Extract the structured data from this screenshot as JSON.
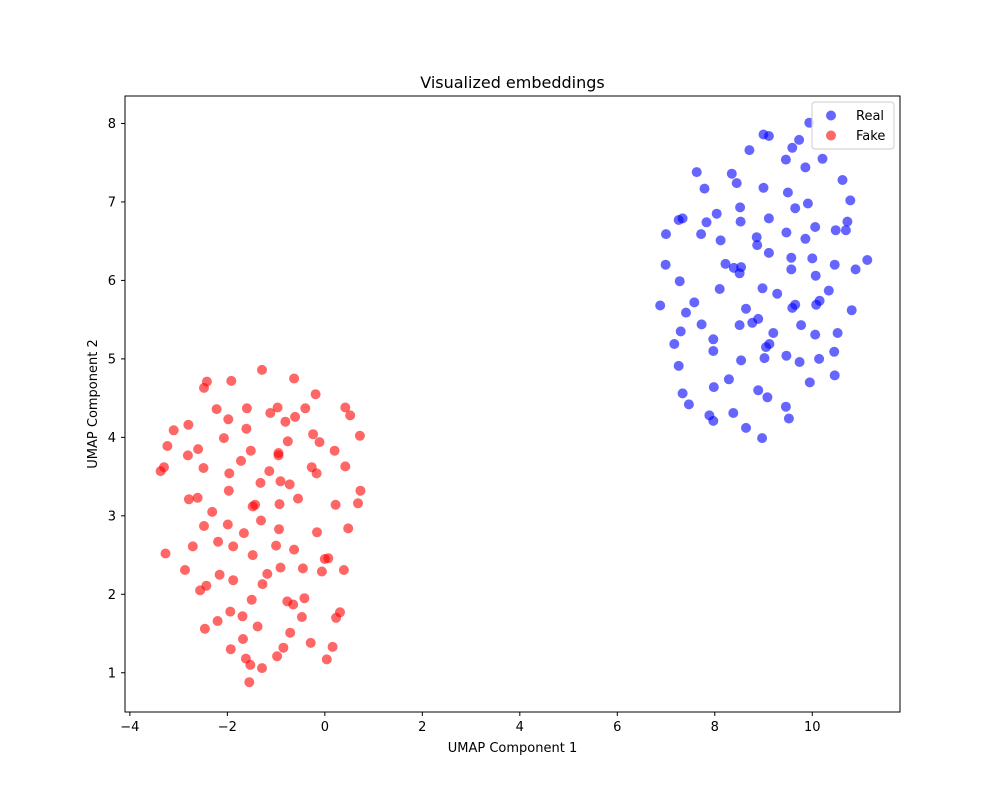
{
  "chart_data": {
    "type": "scatter",
    "title": "Visualized embeddings",
    "xlabel": "UMAP Component 1",
    "ylabel": "UMAP Component 2",
    "xlim": [
      -4.1,
      11.8
    ],
    "ylim": [
      0.5,
      8.35
    ],
    "xticks": [
      -4,
      -2,
      0,
      2,
      4,
      6,
      8,
      10
    ],
    "xtick_labels": [
      "−4",
      "−2",
      "0",
      "2",
      "4",
      "6",
      "8",
      "10"
    ],
    "yticks": [
      1,
      2,
      3,
      4,
      5,
      6,
      7,
      8
    ],
    "ytick_labels": [
      "1",
      "2",
      "3",
      "4",
      "5",
      "6",
      "7",
      "8"
    ],
    "grid": false,
    "legend_position": "top-right",
    "series": [
      {
        "name": "Real",
        "color": "#0000ff",
        "points": [
          [
            9.94,
            8.01
          ],
          [
            9.0,
            7.86
          ],
          [
            9.11,
            7.84
          ],
          [
            9.73,
            7.79
          ],
          [
            9.59,
            7.69
          ],
          [
            8.71,
            7.66
          ],
          [
            10.21,
            7.55
          ],
          [
            9.46,
            7.54
          ],
          [
            9.86,
            7.44
          ],
          [
            7.63,
            7.38
          ],
          [
            8.35,
            7.36
          ],
          [
            10.62,
            7.28
          ],
          [
            8.45,
            7.24
          ],
          [
            7.79,
            7.17
          ],
          [
            9.0,
            7.18
          ],
          [
            9.5,
            7.12
          ],
          [
            10.78,
            7.02
          ],
          [
            9.91,
            6.98
          ],
          [
            8.52,
            6.93
          ],
          [
            9.65,
            6.92
          ],
          [
            8.04,
            6.85
          ],
          [
            7.34,
            6.79
          ],
          [
            7.26,
            6.77
          ],
          [
            7.83,
            6.74
          ],
          [
            8.53,
            6.75
          ],
          [
            9.11,
            6.79
          ],
          [
            10.72,
            6.75
          ],
          [
            10.06,
            6.68
          ],
          [
            10.48,
            6.64
          ],
          [
            10.69,
            6.64
          ],
          [
            7.0,
            6.59
          ],
          [
            7.72,
            6.59
          ],
          [
            9.47,
            6.61
          ],
          [
            8.12,
            6.51
          ],
          [
            8.86,
            6.55
          ],
          [
            9.86,
            6.53
          ],
          [
            8.87,
            6.45
          ],
          [
            9.11,
            6.35
          ],
          [
            9.57,
            6.29
          ],
          [
            10.0,
            6.28
          ],
          [
            11.13,
            6.26
          ],
          [
            6.99,
            6.2
          ],
          [
            8.22,
            6.21
          ],
          [
            8.39,
            6.16
          ],
          [
            8.54,
            6.17
          ],
          [
            8.51,
            6.09
          ],
          [
            9.57,
            6.14
          ],
          [
            10.46,
            6.2
          ],
          [
            10.89,
            6.14
          ],
          [
            10.07,
            6.06
          ],
          [
            7.28,
            5.99
          ],
          [
            8.1,
            5.89
          ],
          [
            8.98,
            5.9
          ],
          [
            9.28,
            5.83
          ],
          [
            10.34,
            5.87
          ],
          [
            6.88,
            5.68
          ],
          [
            7.58,
            5.72
          ],
          [
            10.15,
            5.74
          ],
          [
            9.59,
            5.65
          ],
          [
            9.65,
            5.69
          ],
          [
            10.08,
            5.69
          ],
          [
            10.81,
            5.62
          ],
          [
            7.41,
            5.59
          ],
          [
            8.64,
            5.64
          ],
          [
            8.89,
            5.51
          ],
          [
            7.73,
            5.44
          ],
          [
            8.51,
            5.43
          ],
          [
            8.77,
            5.46
          ],
          [
            9.77,
            5.43
          ],
          [
            7.3,
            5.35
          ],
          [
            9.2,
            5.33
          ],
          [
            10.06,
            5.31
          ],
          [
            10.52,
            5.33
          ],
          [
            7.97,
            5.25
          ],
          [
            7.17,
            5.19
          ],
          [
            9.05,
            5.15
          ],
          [
            9.12,
            5.19
          ],
          [
            7.97,
            5.1
          ],
          [
            10.45,
            5.09
          ],
          [
            9.47,
            5.04
          ],
          [
            9.02,
            5.01
          ],
          [
            10.14,
            5.0
          ],
          [
            8.54,
            4.98
          ],
          [
            9.74,
            4.96
          ],
          [
            7.26,
            4.91
          ],
          [
            10.46,
            4.79
          ],
          [
            8.29,
            4.74
          ],
          [
            9.95,
            4.7
          ],
          [
            7.98,
            4.64
          ],
          [
            8.89,
            4.6
          ],
          [
            7.34,
            4.56
          ],
          [
            9.08,
            4.51
          ],
          [
            7.47,
            4.42
          ],
          [
            9.46,
            4.39
          ],
          [
            8.38,
            4.31
          ],
          [
            7.89,
            4.28
          ],
          [
            7.97,
            4.21
          ],
          [
            9.52,
            4.24
          ],
          [
            8.64,
            4.12
          ],
          [
            8.97,
            3.99
          ]
        ]
      },
      {
        "name": "Fake",
        "color": "#ff0000",
        "points": [
          [
            -1.29,
            4.86
          ],
          [
            -0.63,
            4.75
          ],
          [
            -1.92,
            4.72
          ],
          [
            -2.42,
            4.71
          ],
          [
            -2.48,
            4.63
          ],
          [
            -0.19,
            4.55
          ],
          [
            -2.22,
            4.36
          ],
          [
            -1.6,
            4.37
          ],
          [
            -0.97,
            4.38
          ],
          [
            -0.4,
            4.37
          ],
          [
            0.42,
            4.38
          ],
          [
            -1.12,
            4.31
          ],
          [
            -0.61,
            4.26
          ],
          [
            0.52,
            4.28
          ],
          [
            -1.98,
            4.23
          ],
          [
            -0.81,
            4.2
          ],
          [
            -2.8,
            4.16
          ],
          [
            -3.1,
            4.09
          ],
          [
            -1.61,
            4.11
          ],
          [
            -0.24,
            4.04
          ],
          [
            0.72,
            4.02
          ],
          [
            -2.07,
            3.99
          ],
          [
            -0.76,
            3.95
          ],
          [
            -0.11,
            3.94
          ],
          [
            -3.23,
            3.89
          ],
          [
            -2.6,
            3.85
          ],
          [
            -1.52,
            3.83
          ],
          [
            0.2,
            3.83
          ],
          [
            -0.95,
            3.77
          ],
          [
            -0.95,
            3.8
          ],
          [
            -2.81,
            3.77
          ],
          [
            -1.72,
            3.7
          ],
          [
            -3.3,
            3.62
          ],
          [
            -3.37,
            3.57
          ],
          [
            -2.49,
            3.61
          ],
          [
            -1.14,
            3.57
          ],
          [
            -0.27,
            3.62
          ],
          [
            0.42,
            3.63
          ],
          [
            -1.96,
            3.54
          ],
          [
            -0.17,
            3.54
          ],
          [
            -0.91,
            3.44
          ],
          [
            -1.32,
            3.42
          ],
          [
            -0.72,
            3.4
          ],
          [
            -1.97,
            3.32
          ],
          [
            0.73,
            3.32
          ],
          [
            -2.79,
            3.21
          ],
          [
            -2.61,
            3.23
          ],
          [
            -0.55,
            3.22
          ],
          [
            -1.48,
            3.12
          ],
          [
            -1.43,
            3.14
          ],
          [
            -0.93,
            3.15
          ],
          [
            0.22,
            3.14
          ],
          [
            0.68,
            3.16
          ],
          [
            -2.31,
            3.05
          ],
          [
            -1.31,
            2.94
          ],
          [
            -2.48,
            2.87
          ],
          [
            -1.99,
            2.89
          ],
          [
            -0.94,
            2.83
          ],
          [
            0.48,
            2.84
          ],
          [
            -1.66,
            2.78
          ],
          [
            -0.16,
            2.79
          ],
          [
            -2.19,
            2.67
          ],
          [
            -2.71,
            2.61
          ],
          [
            -1.88,
            2.61
          ],
          [
            -1.0,
            2.62
          ],
          [
            -0.63,
            2.57
          ],
          [
            -3.27,
            2.52
          ],
          [
            -1.48,
            2.5
          ],
          [
            0.0,
            2.45
          ],
          [
            0.07,
            2.46
          ],
          [
            -2.87,
            2.31
          ],
          [
            -0.91,
            2.34
          ],
          [
            -0.45,
            2.33
          ],
          [
            -0.06,
            2.29
          ],
          [
            0.39,
            2.31
          ],
          [
            -1.18,
            2.26
          ],
          [
            -2.16,
            2.25
          ],
          [
            -1.88,
            2.18
          ],
          [
            -1.28,
            2.13
          ],
          [
            -2.43,
            2.11
          ],
          [
            -2.56,
            2.05
          ],
          [
            -0.42,
            1.95
          ],
          [
            -1.5,
            1.93
          ],
          [
            -0.77,
            1.91
          ],
          [
            -0.65,
            1.87
          ],
          [
            -1.94,
            1.78
          ],
          [
            0.31,
            1.77
          ],
          [
            -1.69,
            1.72
          ],
          [
            -0.47,
            1.71
          ],
          [
            0.23,
            1.7
          ],
          [
            -2.2,
            1.66
          ],
          [
            -2.46,
            1.56
          ],
          [
            -1.38,
            1.59
          ],
          [
            -0.71,
            1.51
          ],
          [
            -1.68,
            1.43
          ],
          [
            -0.29,
            1.38
          ],
          [
            -1.93,
            1.3
          ],
          [
            -0.85,
            1.32
          ],
          [
            0.16,
            1.33
          ],
          [
            -1.62,
            1.18
          ],
          [
            0.04,
            1.17
          ],
          [
            -1.53,
            1.1
          ],
          [
            -1.29,
            1.06
          ],
          [
            -0.98,
            1.21
          ],
          [
            -1.55,
            0.88
          ]
        ]
      }
    ]
  }
}
